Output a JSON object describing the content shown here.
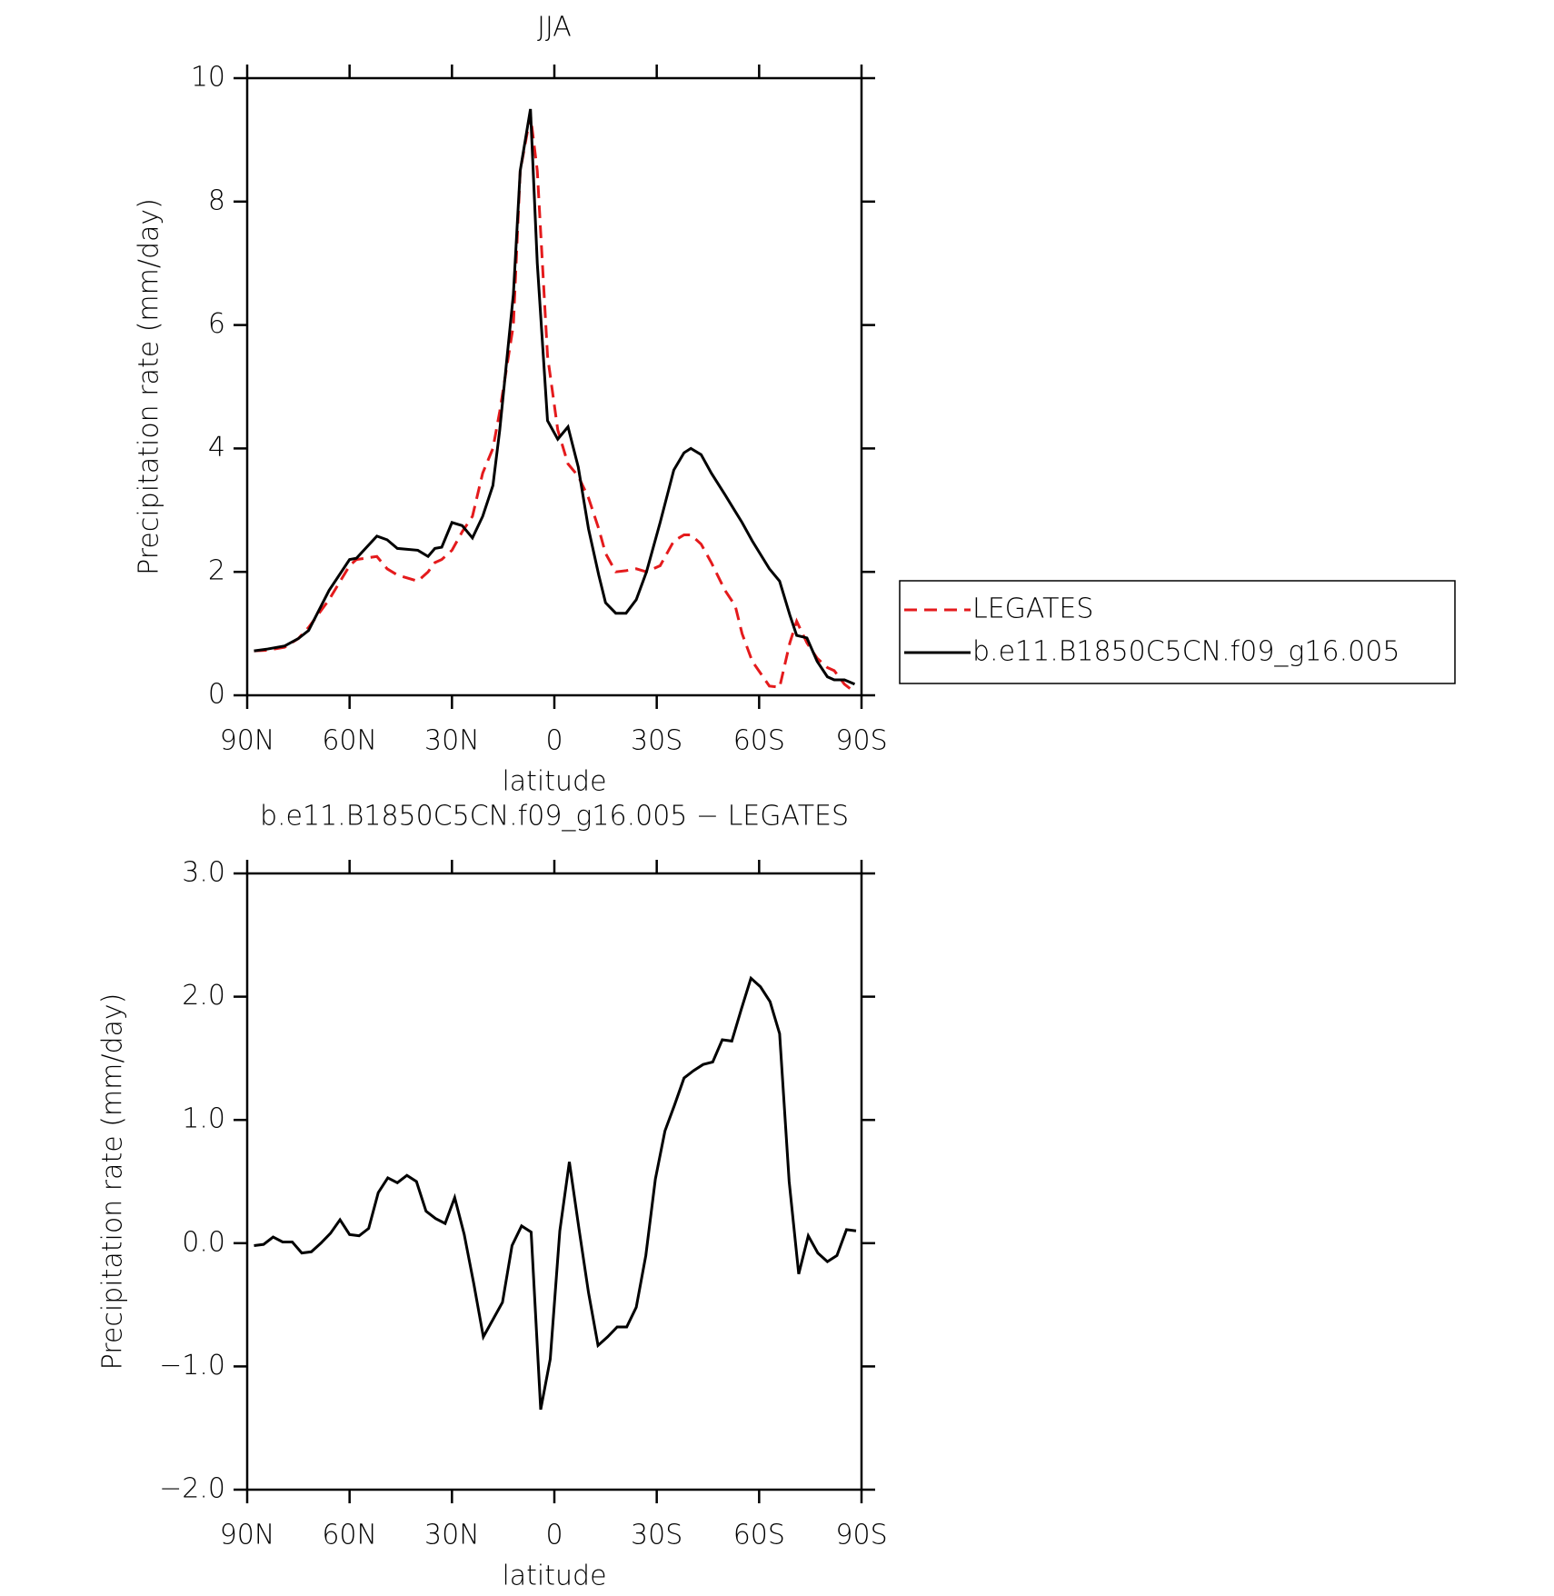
{
  "chart_data": [
    {
      "type": "line",
      "title": "JJA",
      "xlabel": "latitude",
      "ylabel": "Precipitation rate (mm/day)",
      "x": [
        88,
        84,
        79,
        75,
        72,
        66,
        60,
        58,
        52,
        49,
        46,
        40,
        37,
        35,
        33,
        30,
        27,
        24,
        21,
        18,
        16,
        12,
        10,
        7,
        5,
        2,
        -1,
        -4,
        -7,
        -10,
        -13,
        -15,
        -18,
        -21,
        -24,
        -27,
        -31,
        -35,
        -38,
        -40,
        -43,
        -46,
        -50,
        -53,
        -55,
        -58,
        -63,
        -66,
        -69,
        -71,
        -74,
        -77,
        -80,
        -82,
        -85,
        -88
      ],
      "series": [
        {
          "name": "LEGATES",
          "color": "#e41a1c",
          "line_style": "dashed",
          "values": [
            0.72,
            0.73,
            0.78,
            0.92,
            1.1,
            1.55,
            2.1,
            2.2,
            2.25,
            2.05,
            1.95,
            1.85,
            2.0,
            2.15,
            2.2,
            2.35,
            2.65,
            2.9,
            3.6,
            4.0,
            4.6,
            6.0,
            8.5,
            9.4,
            8.5,
            5.5,
            4.3,
            3.75,
            3.55,
            3.2,
            2.7,
            2.3,
            2.0,
            2.02,
            2.05,
            2.0,
            2.1,
            2.5,
            2.6,
            2.6,
            2.45,
            2.15,
            1.7,
            1.45,
            1.0,
            0.55,
            0.15,
            0.13,
            0.85,
            1.2,
            0.85,
            0.6,
            0.45,
            0.4,
            0.18,
            0.05
          ]
        },
        {
          "name": "b.e11.B1850C5CN.f09_g16.005",
          "color": "#000000",
          "line_style": "solid",
          "values": [
            0.72,
            0.75,
            0.8,
            0.92,
            1.05,
            1.7,
            2.2,
            2.22,
            2.58,
            2.52,
            2.38,
            2.35,
            2.25,
            2.38,
            2.4,
            2.8,
            2.75,
            2.55,
            2.9,
            3.4,
            4.3,
            6.5,
            8.5,
            9.5,
            7.0,
            4.45,
            4.15,
            4.35,
            3.7,
            2.7,
            1.95,
            1.5,
            1.33,
            1.33,
            1.55,
            2.0,
            2.8,
            3.65,
            3.93,
            4.0,
            3.9,
            3.6,
            3.25,
            2.98,
            2.8,
            2.5,
            2.05,
            1.85,
            1.3,
            0.97,
            0.93,
            0.55,
            0.3,
            0.25,
            0.25,
            0.18
          ]
        }
      ],
      "xlim": [
        90,
        -90
      ],
      "xticks": [
        {
          "value": 90,
          "label": "90N"
        },
        {
          "value": 60,
          "label": "60N"
        },
        {
          "value": 30,
          "label": "30N"
        },
        0,
        {
          "value": -30,
          "label": "30S"
        },
        {
          "value": -60,
          "label": "60S"
        },
        {
          "value": -90,
          "label": "90S"
        }
      ],
      "ylim": [
        0,
        10
      ],
      "yticks": [
        0,
        2,
        4,
        6,
        8,
        10
      ],
      "legend": "right",
      "grid": false
    },
    {
      "type": "line",
      "title": "b.e11.B1850C5CN.f09_g16.005 − LEGATES",
      "xlabel": "latitude",
      "ylabel": "Precipitation rate (mm/day)",
      "x": [
        88,
        85.2,
        82.4,
        79.6,
        76.8,
        74,
        71.2,
        68.4,
        65.6,
        62.8,
        60,
        57.2,
        54.4,
        51.6,
        48.8,
        46,
        43.2,
        40.4,
        37.6,
        34.8,
        32,
        29.2,
        26.4,
        23.6,
        20.8,
        18,
        15.2,
        12.4,
        9.6,
        6.8,
        4,
        1.2,
        -1.6,
        -4.4,
        -7.2,
        -10,
        -12.8,
        -15.6,
        -18.4,
        -21.2,
        -24,
        -26.8,
        -29.6,
        -32.4,
        -35.2,
        -38,
        -40.8,
        -43.6,
        -46.4,
        -49.2,
        -52,
        -54.8,
        -57.6,
        -60.4,
        -63.2,
        -66,
        -68.8,
        -71.6,
        -74.4,
        -77.2,
        -80,
        -82.8,
        -85.6,
        -88.4
      ],
      "series": [
        {
          "color": "#000000",
          "line_style": "solid",
          "values": [
            -0.02,
            -0.01,
            0.05,
            0.01,
            0.01,
            -0.08,
            -0.07,
            0.0,
            0.08,
            0.19,
            0.07,
            0.06,
            0.12,
            0.41,
            0.53,
            0.49,
            0.55,
            0.5,
            0.26,
            0.2,
            0.16,
            0.37,
            0.07,
            -0.33,
            -0.76,
            -0.62,
            -0.48,
            -0.02,
            0.14,
            0.09,
            -1.35,
            -0.94,
            0.1,
            0.66,
            0.12,
            -0.4,
            -0.83,
            -0.76,
            -0.68,
            -0.68,
            -0.52,
            -0.1,
            0.52,
            0.91,
            1.12,
            1.34,
            1.4,
            1.45,
            1.47,
            1.65,
            1.64,
            1.9,
            2.15,
            2.08,
            1.96,
            1.7,
            0.5,
            -0.25,
            0.06,
            -0.08,
            -0.15,
            -0.1,
            0.11,
            0.1
          ]
        }
      ],
      "xlim": [
        90,
        -90
      ],
      "xticks": [
        {
          "value": 90,
          "label": "90N"
        },
        {
          "value": 60,
          "label": "60N"
        },
        {
          "value": 30,
          "label": "30N"
        },
        0,
        {
          "value": -30,
          "label": "30S"
        },
        {
          "value": -60,
          "label": "60S"
        },
        {
          "value": -90,
          "label": "90S"
        }
      ],
      "ylim": [
        -2,
        3
      ],
      "yticks": [
        {
          "value": -2,
          "label": "−2.0"
        },
        {
          "value": -1,
          "label": "−1.0"
        },
        {
          "value": 0,
          "label": "0.0"
        },
        {
          "value": 1,
          "label": "1.0"
        },
        {
          "value": 2,
          "label": "2.0"
        },
        {
          "value": 3,
          "label": "3.0"
        }
      ],
      "grid": false
    }
  ]
}
